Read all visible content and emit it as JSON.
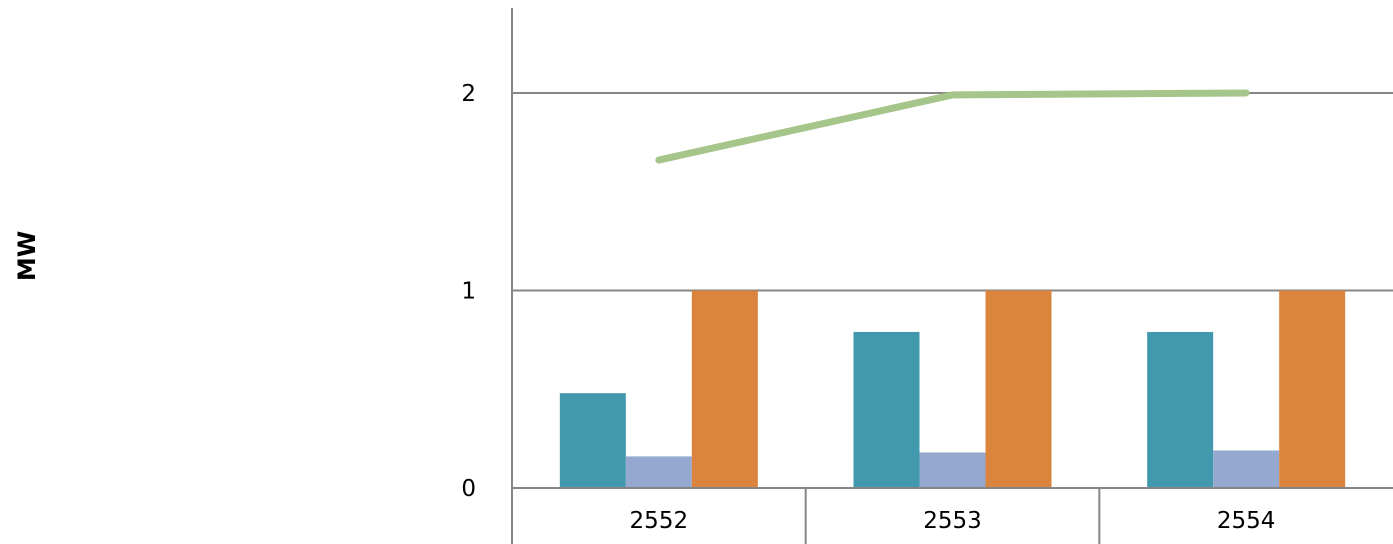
{
  "chart_data": {
    "type": "bar",
    "title": "",
    "xlabel": "",
    "ylabel": "MW",
    "categories": [
      "2552",
      "2553",
      "2554"
    ],
    "yticks": [
      "0",
      "1",
      "2"
    ],
    "ylim": [
      0,
      2.43
    ],
    "grid": true,
    "series": [
      {
        "kind": "bar",
        "values": [
          0.48,
          0.79,
          0.79
        ],
        "color": "#4299AE"
      },
      {
        "kind": "bar",
        "values": [
          0.16,
          0.18,
          0.19
        ],
        "color": "#95A9D0"
      },
      {
        "kind": "bar",
        "values": [
          1.0,
          1.0,
          1.0
        ],
        "color": "#DB843D"
      },
      {
        "kind": "line",
        "values": [
          1.66,
          1.99,
          2.0
        ],
        "color": "#A5C58A"
      }
    ]
  }
}
